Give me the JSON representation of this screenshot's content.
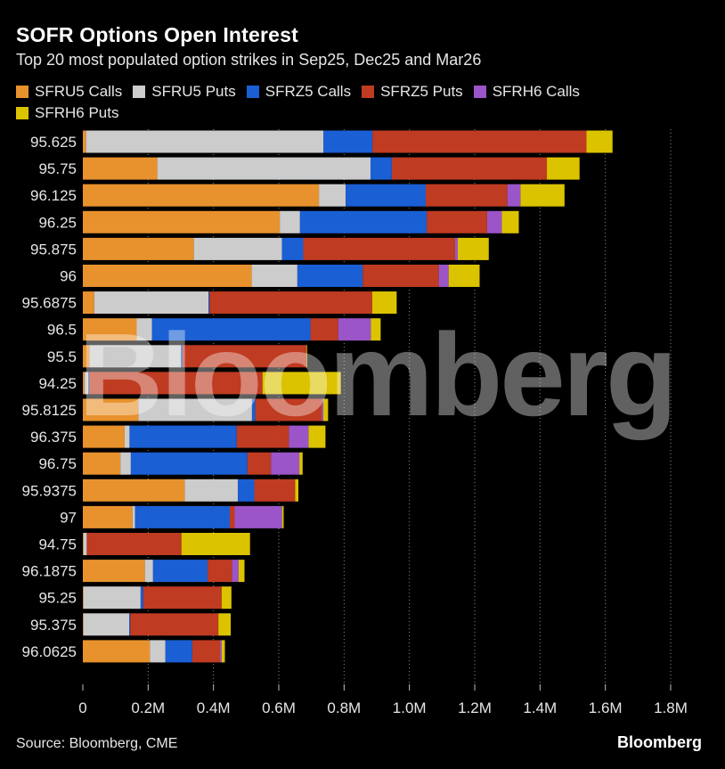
{
  "header": {
    "title": "SOFR Options Open Interest",
    "subtitle": "Top 20 most populated option strikes in Sep25, Dec25 and Mar26"
  },
  "footer": {
    "source": "Source: Bloomberg, CME",
    "brand": "Bloomberg"
  },
  "watermark": "Bloomberg",
  "chart_data": {
    "type": "bar",
    "orientation": "horizontal",
    "stacked": true,
    "title": "SOFR Options Open Interest",
    "subtitle": "Top 20 most populated option strikes in Sep25, Dec25 and Mar26",
    "xlabel": "",
    "ylabel": "",
    "xlim": [
      0,
      1800000
    ],
    "x_ticks": [
      0,
      200000,
      400000,
      600000,
      800000,
      1000000,
      1200000,
      1400000,
      1600000,
      1800000
    ],
    "x_tick_labels": [
      "0",
      "0.2M",
      "0.4M",
      "0.6M",
      "0.8M",
      "1.0M",
      "1.2M",
      "1.4M",
      "1.6M",
      "1.8M"
    ],
    "grid": true,
    "legend_position": "top-left",
    "categories": [
      "95.625",
      "95.75",
      "96.125",
      "96.25",
      "95.875",
      "96",
      "95.6875",
      "96.5",
      "95.5",
      "94.25",
      "95.8125",
      "96.375",
      "96.75",
      "95.9375",
      "97",
      "94.75",
      "96.1875",
      "95.25",
      "95.375",
      "96.0625"
    ],
    "series": [
      {
        "name": "SFRU5 Calls",
        "color": "#e8922d",
        "values": [
          10000,
          228000,
          723000,
          603000,
          340000,
          517000,
          35000,
          165000,
          20000,
          5000,
          170000,
          128000,
          115000,
          312000,
          152000,
          2000,
          190000,
          2000,
          2000,
          205000
        ]
      },
      {
        "name": "SFRU5 Puts",
        "color": "#cccccc",
        "values": [
          727000,
          653000,
          82000,
          62000,
          270000,
          140000,
          350000,
          47000,
          280000,
          12000,
          348000,
          15000,
          32000,
          163000,
          8000,
          10000,
          25000,
          175000,
          140000,
          48000
        ]
      },
      {
        "name": "SFRZ5 Calls",
        "color": "#1a5fd4",
        "values": [
          150000,
          65000,
          245000,
          388000,
          65000,
          200000,
          3000,
          485000,
          5000,
          3000,
          10000,
          328000,
          357000,
          50000,
          290000,
          0,
          167000,
          8000,
          3000,
          82000
        ]
      },
      {
        "name": "SFRZ5 Puts",
        "color": "#bf3b21",
        "values": [
          655000,
          475000,
          250000,
          185000,
          465000,
          233000,
          498000,
          85000,
          380000,
          530000,
          203000,
          160000,
          72000,
          125000,
          15000,
          290000,
          75000,
          240000,
          270000,
          85000
        ]
      },
      {
        "name": "SFRH6 Calls",
        "color": "#9b55c8",
        "values": [
          0,
          0,
          40000,
          45000,
          8000,
          30000,
          0,
          100000,
          0,
          0,
          5000,
          60000,
          87000,
          0,
          145000,
          0,
          20000,
          0,
          0,
          5000
        ]
      },
      {
        "name": "SFRH6 Puts",
        "color": "#dcc300",
        "values": [
          80000,
          100000,
          135000,
          52000,
          95000,
          95000,
          75000,
          30000,
          2000,
          240000,
          15000,
          52000,
          10000,
          10000,
          5000,
          210000,
          18000,
          30000,
          38000,
          10000
        ]
      }
    ]
  }
}
